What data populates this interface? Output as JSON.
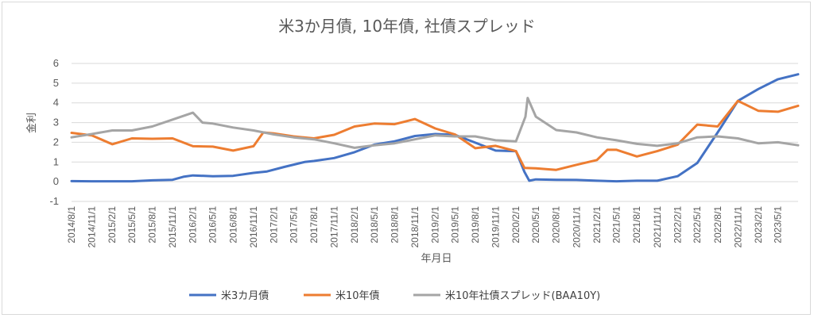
{
  "chart_data": {
    "type": "line",
    "title": "米3か月債, 10年債, 社債スプレッド",
    "xlabel": "年月日",
    "ylabel": "金利",
    "ylim": [
      -1,
      6
    ],
    "yticks": [
      "6",
      "5",
      "4",
      "3",
      "2",
      "1",
      "0",
      "-1"
    ],
    "grid": true,
    "legend_position": "bottom",
    "x_range": [
      "2014-08-01",
      "2023-07-31"
    ],
    "xticks": [
      "2014/8/1",
      "2014/11/1",
      "2015/2/1",
      "2015/5/1",
      "2015/8/1",
      "2015/11/1",
      "2016/2/1",
      "2016/5/1",
      "2016/8/1",
      "2016/11/1",
      "2017/2/1",
      "2017/5/1",
      "2017/8/1",
      "2017/11/1",
      "2018/2/1",
      "2018/5/1",
      "2018/8/1",
      "2018/11/1",
      "2019/2/1",
      "2019/5/1",
      "2019/8/1",
      "2019/11/1",
      "2020/2/1",
      "2020/5/1",
      "2020/8/1",
      "2020/11/1",
      "2021/2/1",
      "2021/5/1",
      "2021/8/1",
      "2021/11/1",
      "2022/2/1",
      "2022/5/1",
      "2022/8/1",
      "2022/11/1",
      "2023/2/1",
      "2023/5/1"
    ],
    "series": [
      {
        "name": "米3カ月債",
        "color": "#4472C4",
        "points": [
          [
            "2014-08-01",
            0.03
          ],
          [
            "2014-11-01",
            0.02
          ],
          [
            "2015-02-01",
            0.02
          ],
          [
            "2015-05-01",
            0.02
          ],
          [
            "2015-08-01",
            0.07
          ],
          [
            "2015-11-01",
            0.1
          ],
          [
            "2015-12-20",
            0.25
          ],
          [
            "2016-02-01",
            0.32
          ],
          [
            "2016-05-01",
            0.28
          ],
          [
            "2016-08-01",
            0.3
          ],
          [
            "2016-11-01",
            0.45
          ],
          [
            "2017-01-01",
            0.52
          ],
          [
            "2017-03-20",
            0.75
          ],
          [
            "2017-06-20",
            1.0
          ],
          [
            "2017-08-01",
            1.05
          ],
          [
            "2017-11-01",
            1.2
          ],
          [
            "2018-02-01",
            1.5
          ],
          [
            "2018-05-01",
            1.88
          ],
          [
            "2018-08-01",
            2.05
          ],
          [
            "2018-11-01",
            2.32
          ],
          [
            "2019-02-01",
            2.42
          ],
          [
            "2019-05-01",
            2.38
          ],
          [
            "2019-08-01",
            1.98
          ],
          [
            "2019-11-01",
            1.58
          ],
          [
            "2020-02-01",
            1.55
          ],
          [
            "2020-03-10",
            0.5
          ],
          [
            "2020-04-01",
            0.05
          ],
          [
            "2020-05-01",
            0.12
          ],
          [
            "2020-08-01",
            0.1
          ],
          [
            "2020-11-01",
            0.09
          ],
          [
            "2021-02-01",
            0.05
          ],
          [
            "2021-05-01",
            0.02
          ],
          [
            "2021-08-01",
            0.05
          ],
          [
            "2021-11-01",
            0.05
          ],
          [
            "2022-02-01",
            0.28
          ],
          [
            "2022-05-01",
            0.95
          ],
          [
            "2022-08-01",
            2.5
          ],
          [
            "2022-11-01",
            4.1
          ],
          [
            "2023-02-01",
            4.7
          ],
          [
            "2023-05-01",
            5.2
          ],
          [
            "2023-07-31",
            5.45
          ]
        ]
      },
      {
        "name": "米10年債",
        "color": "#ED7D31",
        "points": [
          [
            "2014-08-01",
            2.48
          ],
          [
            "2014-11-01",
            2.35
          ],
          [
            "2015-02-01",
            1.9
          ],
          [
            "2015-05-01",
            2.2
          ],
          [
            "2015-08-01",
            2.18
          ],
          [
            "2015-11-01",
            2.2
          ],
          [
            "2016-02-01",
            1.8
          ],
          [
            "2016-05-01",
            1.78
          ],
          [
            "2016-08-01",
            1.58
          ],
          [
            "2016-11-01",
            1.8
          ],
          [
            "2016-12-15",
            2.5
          ],
          [
            "2017-02-01",
            2.45
          ],
          [
            "2017-05-01",
            2.3
          ],
          [
            "2017-08-01",
            2.2
          ],
          [
            "2017-11-01",
            2.38
          ],
          [
            "2018-02-01",
            2.8
          ],
          [
            "2018-05-01",
            2.95
          ],
          [
            "2018-08-01",
            2.92
          ],
          [
            "2018-11-01",
            3.18
          ],
          [
            "2019-02-01",
            2.7
          ],
          [
            "2019-05-01",
            2.4
          ],
          [
            "2019-08-01",
            1.7
          ],
          [
            "2019-11-01",
            1.82
          ],
          [
            "2020-02-01",
            1.55
          ],
          [
            "2020-03-10",
            0.7
          ],
          [
            "2020-05-01",
            0.68
          ],
          [
            "2020-08-01",
            0.6
          ],
          [
            "2020-11-01",
            0.86
          ],
          [
            "2021-02-01",
            1.1
          ],
          [
            "2021-03-20",
            1.62
          ],
          [
            "2021-05-01",
            1.62
          ],
          [
            "2021-08-01",
            1.28
          ],
          [
            "2021-11-01",
            1.55
          ],
          [
            "2022-02-01",
            1.88
          ],
          [
            "2022-05-01",
            2.9
          ],
          [
            "2022-08-01",
            2.8
          ],
          [
            "2022-11-01",
            4.1
          ],
          [
            "2023-02-01",
            3.6
          ],
          [
            "2023-05-01",
            3.55
          ],
          [
            "2023-07-31",
            3.85
          ]
        ]
      },
      {
        "name": "米10年社債スプレッド(BAA10Y)",
        "color": "#A5A5A5",
        "points": [
          [
            "2014-08-01",
            2.25
          ],
          [
            "2014-11-01",
            2.42
          ],
          [
            "2015-02-01",
            2.6
          ],
          [
            "2015-05-01",
            2.6
          ],
          [
            "2015-08-01",
            2.8
          ],
          [
            "2015-11-01",
            3.15
          ],
          [
            "2016-02-01",
            3.5
          ],
          [
            "2016-03-15",
            3.0
          ],
          [
            "2016-05-01",
            2.95
          ],
          [
            "2016-08-01",
            2.75
          ],
          [
            "2016-11-01",
            2.6
          ],
          [
            "2017-02-01",
            2.4
          ],
          [
            "2017-05-01",
            2.25
          ],
          [
            "2017-08-01",
            2.15
          ],
          [
            "2017-11-01",
            1.95
          ],
          [
            "2018-02-01",
            1.72
          ],
          [
            "2018-05-01",
            1.85
          ],
          [
            "2018-08-01",
            1.95
          ],
          [
            "2018-11-01",
            2.15
          ],
          [
            "2019-02-01",
            2.35
          ],
          [
            "2019-05-01",
            2.3
          ],
          [
            "2019-08-01",
            2.3
          ],
          [
            "2019-11-01",
            2.1
          ],
          [
            "2020-02-01",
            2.05
          ],
          [
            "2020-03-15",
            3.3
          ],
          [
            "2020-03-25",
            4.25
          ],
          [
            "2020-05-01",
            3.3
          ],
          [
            "2020-08-01",
            2.62
          ],
          [
            "2020-11-01",
            2.5
          ],
          [
            "2021-02-01",
            2.25
          ],
          [
            "2021-05-01",
            2.1
          ],
          [
            "2021-08-01",
            1.92
          ],
          [
            "2021-11-01",
            1.82
          ],
          [
            "2022-02-01",
            1.95
          ],
          [
            "2022-05-01",
            2.25
          ],
          [
            "2022-08-01",
            2.3
          ],
          [
            "2022-11-01",
            2.2
          ],
          [
            "2023-02-01",
            1.95
          ],
          [
            "2023-05-01",
            2.0
          ],
          [
            "2023-07-31",
            1.85
          ]
        ]
      }
    ]
  }
}
